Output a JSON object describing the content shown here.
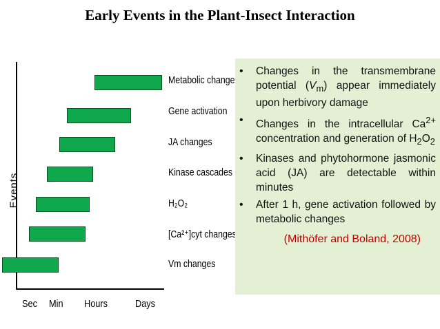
{
  "title": "Early Events in the Plant-Insect Interaction",
  "y_axis_label": "Events",
  "x_ticks": [
    "Sec",
    "Min",
    "Hours",
    "Days"
  ],
  "events": [
    {
      "label": "Metabolic changes",
      "start": "Hours-Days",
      "end": "Days+"
    },
    {
      "label": "Gene activation",
      "start": "Min-Hours",
      "end": "Days"
    },
    {
      "label": "JA changes",
      "start": "Min",
      "end": "Hours-Days"
    },
    {
      "label": "Kinase cascades",
      "start": "Sec-Min",
      "end": "Hours"
    },
    {
      "label": "H₂O₂",
      "start": "Sec-Min",
      "end": "Hours"
    },
    {
      "label": "[Ca²⁺]cyt changes",
      "start": "Sec",
      "end": "Min-Hours"
    },
    {
      "label": "Vm changes",
      "start": "Sec",
      "end": "Min"
    }
  ],
  "bullets": [
    {
      "html": "Changes in the transmembrane potential (<i>V</i><sub>m</sub>) appear immediately upon herbivory damage"
    },
    {
      "html": "Changes in the intracellular Ca<sup>2+</sup> concentration and generation of H<sub>2</sub>O<sub>2</sub>"
    },
    {
      "html": "Kinases and phytohormone jasmonic acid (JA) are detectable within minutes"
    },
    {
      "html": "After 1 h, gene activation followed by metabolic changes"
    }
  ],
  "citation": "(Mithöfer and Boland, 2008)",
  "colors": {
    "bar_fill": "#0fa84c",
    "box_bg": "#e3f0d3",
    "citation": "#c00000"
  }
}
